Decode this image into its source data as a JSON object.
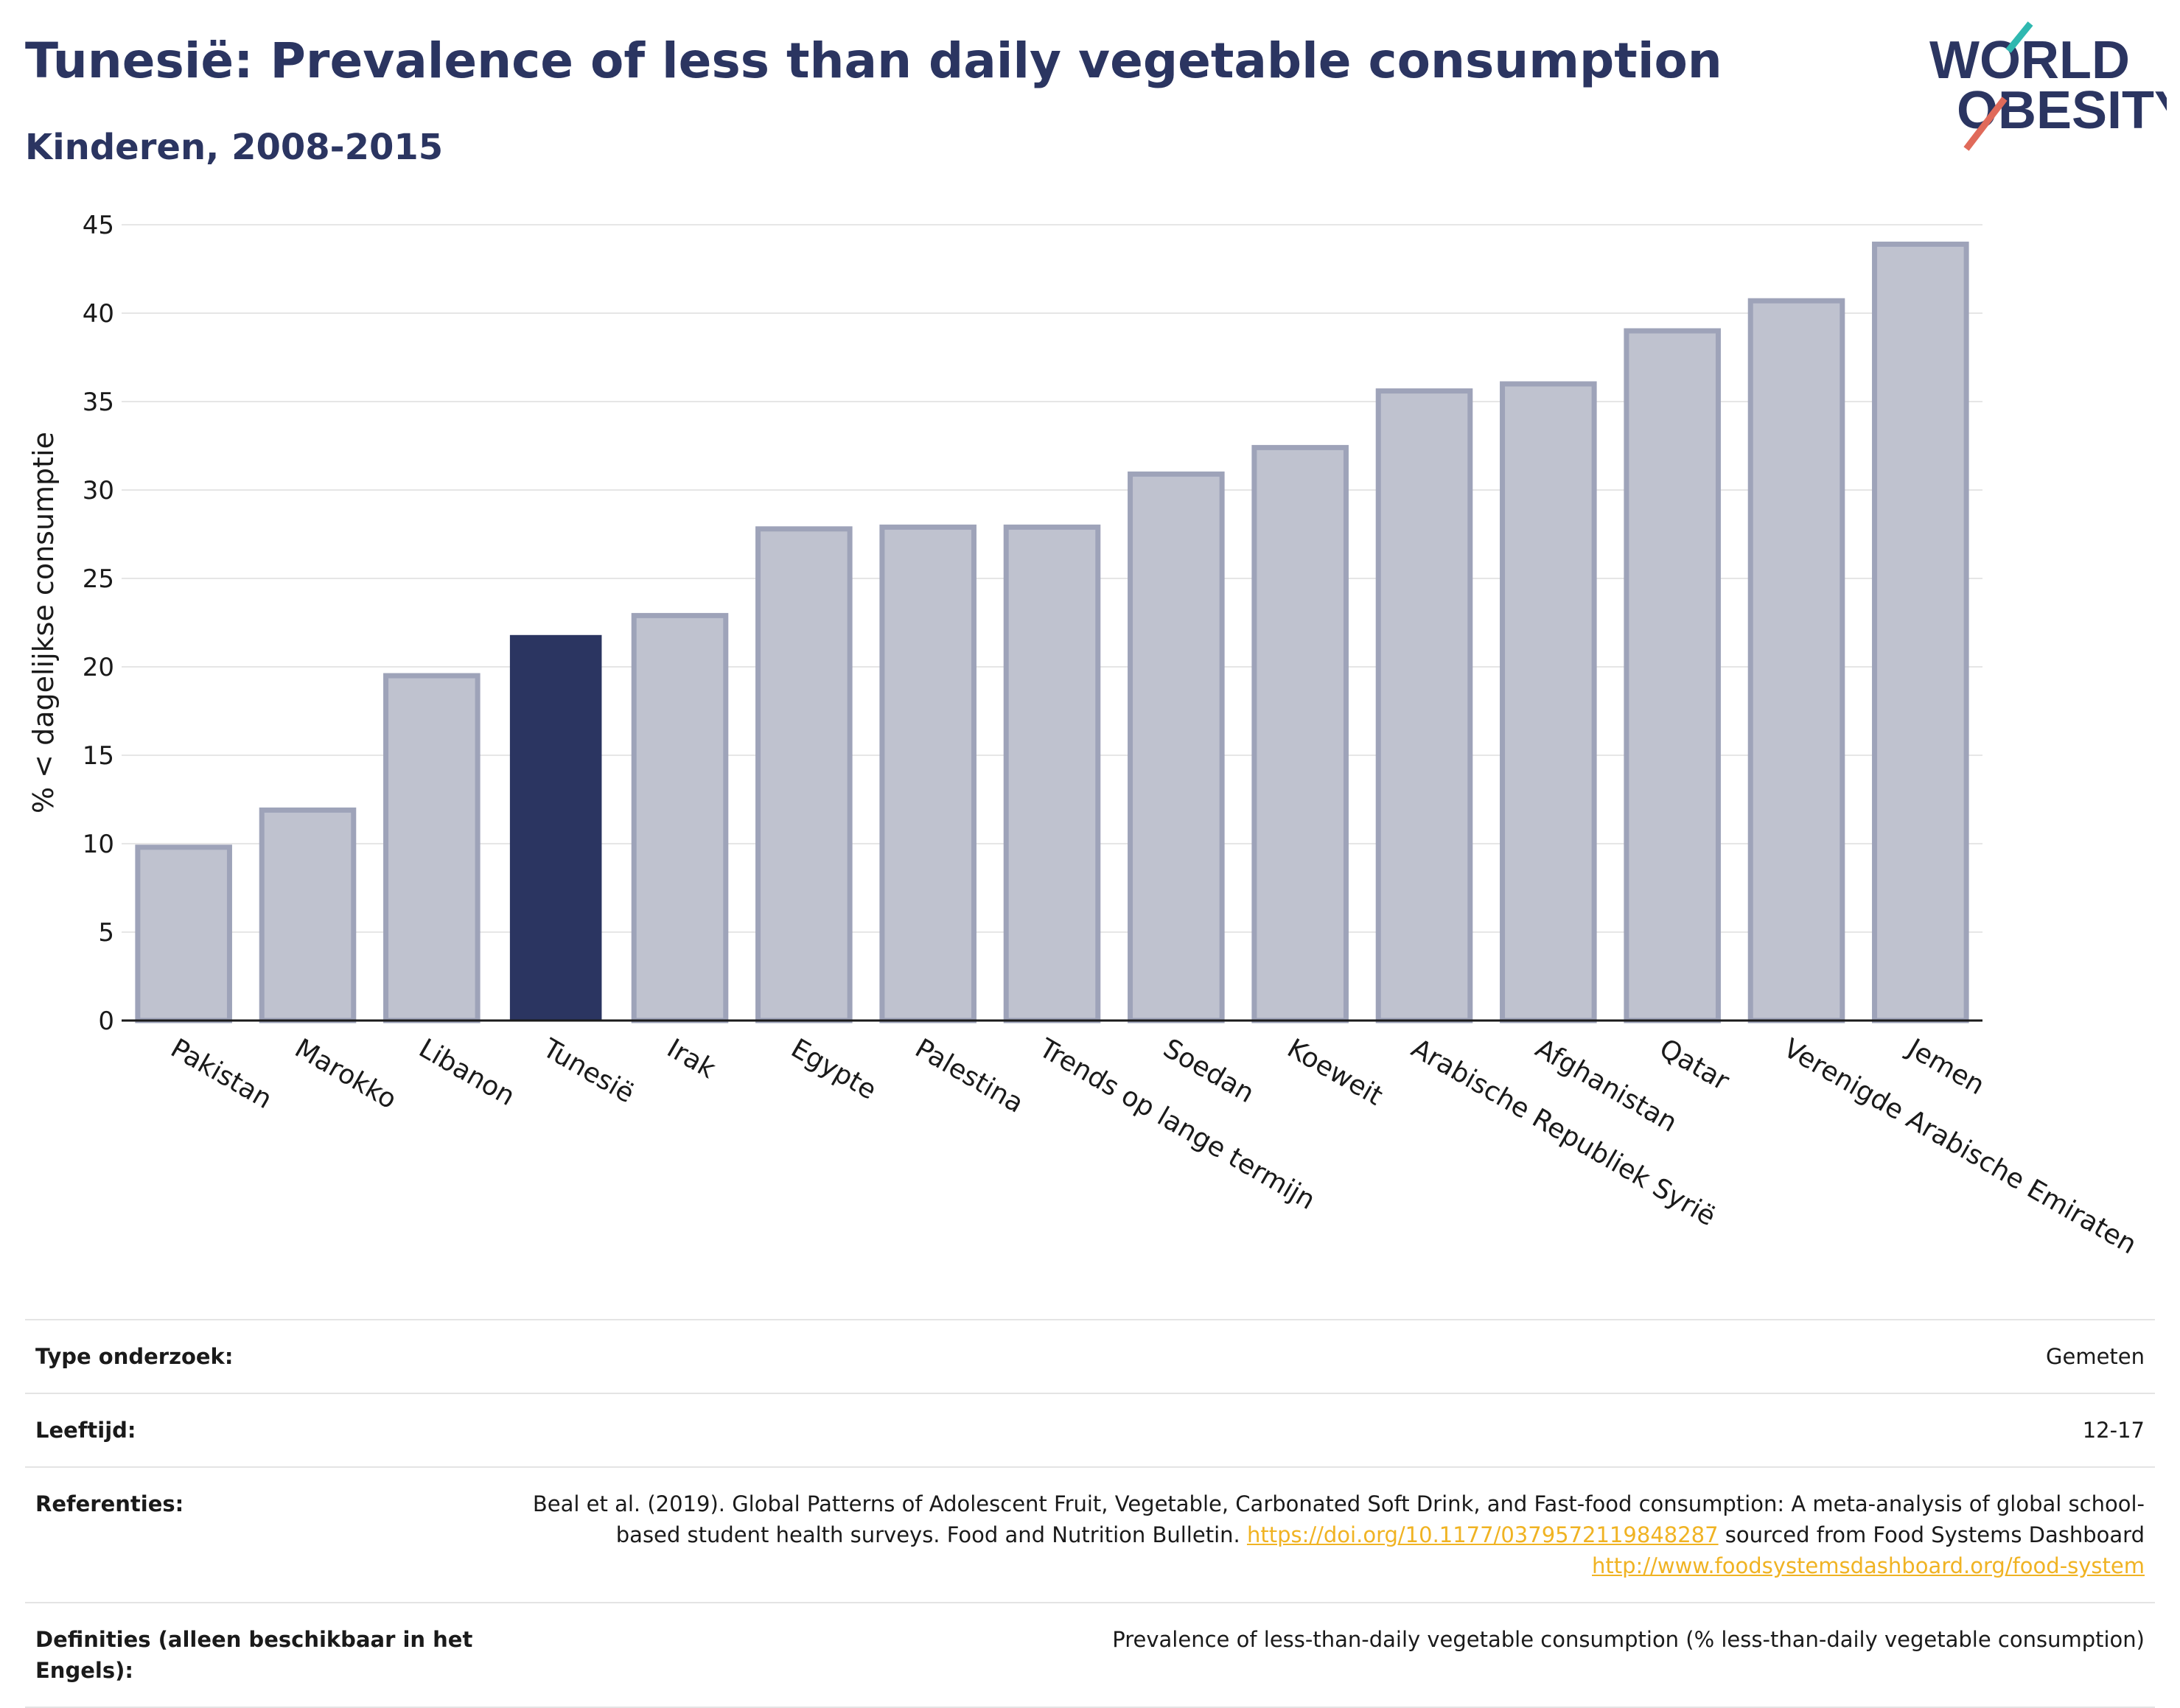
{
  "title": "Tunesië: Prevalence of less than daily vegetable consumption",
  "subtitle": "Kinderen, 2008-2015",
  "logo": {
    "line1": "WORLD",
    "line2": "OBESITY"
  },
  "colors": {
    "title": "#2b3561",
    "bar": "#bfc2cf",
    "bar_edge": "#9ea3b9",
    "highlight": "#2b3561",
    "link": "#f0b323",
    "logo_teal": "#2fb8b0",
    "logo_red": "#e06a5a"
  },
  "chart_data": {
    "type": "bar",
    "ylabel": "% < dagelijkse consumptie",
    "xlabel": "",
    "ylim": [
      0,
      45
    ],
    "yticks": [
      0,
      5,
      10,
      15,
      20,
      25,
      30,
      35,
      40,
      45
    ],
    "grid": true,
    "highlight": "Tunesië",
    "categories": [
      "Pakistan",
      "Marokko",
      "Libanon",
      "Tunesië",
      "Irak",
      "Egypte",
      "Palestina",
      "Trends op lange termijn",
      "Soedan",
      "Koeweit",
      "Arabische Republiek Syrië",
      "Afghanistan",
      "Qatar",
      "Verenigde Arabische Emiraten",
      "Jemen"
    ],
    "values": [
      9.8,
      11.9,
      19.5,
      21.8,
      22.9,
      27.8,
      27.9,
      27.9,
      30.9,
      32.4,
      35.6,
      36.0,
      39.0,
      40.7,
      43.9
    ]
  },
  "meta": {
    "rows": [
      {
        "label": "Type onderzoek:",
        "value": "Gemeten"
      },
      {
        "label": "Leeftijd:",
        "value": "12-17"
      },
      {
        "label": "Referenties:",
        "value": "Beal et al. (2019). Global Patterns of Adolescent Fruit, Vegetable, Carbonated Soft Drink, and Fast-food consumption: A meta-analysis of global school-based student health surveys. Food and Nutrition Bulletin.",
        "link1": "https://doi.org/10.1177/0379572119848287",
        "mid": "sourced from Food Systems Dashboard",
        "link2": "http://www.foodsystemsdashboard.org/food-system"
      },
      {
        "label": "Definities (alleen beschikbaar in het Engels):",
        "value": "Prevalence of less-than-daily vegetable consumption (% less-than-daily vegetable consumption)"
      }
    ]
  }
}
